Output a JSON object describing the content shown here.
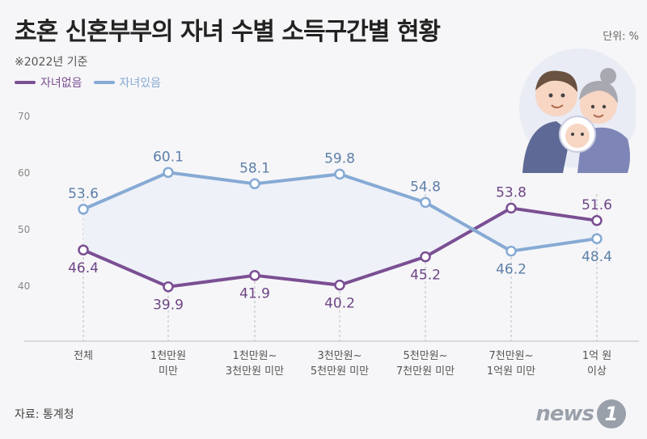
{
  "header": {
    "title": "초혼 신혼부부의 자녀 수별 소득구간별 현황",
    "unit": "단위: %",
    "basis": "※2022년 기준"
  },
  "footer": {
    "source": "자료: 통계청",
    "logo_text": "news",
    "logo_badge": "1"
  },
  "colors": {
    "no_children": "#7b4f93",
    "with_children": "#86aad4",
    "background": "#f6f6f8"
  },
  "chart_data": {
    "type": "line",
    "categories": [
      [
        "전체"
      ],
      [
        "1천만원",
        "미만"
      ],
      [
        "1천만원~",
        "3천만원 미만"
      ],
      [
        "3천만원~",
        "5천만원 미만"
      ],
      [
        "5천만원~",
        "7천만원 미만"
      ],
      [
        "7천만원~",
        "1억원 미만"
      ],
      [
        "1억 원",
        "이상"
      ]
    ],
    "series": [
      {
        "name": "자녀없음",
        "values": [
          46.4,
          39.9,
          41.9,
          40.2,
          45.2,
          53.8,
          51.6
        ]
      },
      {
        "name": "자녀있음",
        "values": [
          53.6,
          60.1,
          58.1,
          59.8,
          54.8,
          46.2,
          48.4
        ]
      }
    ],
    "yticks": [
      40,
      50,
      60,
      70
    ],
    "ylim": [
      35,
      74
    ],
    "legend_position": "top-left",
    "grid": "vertical-dashed"
  }
}
